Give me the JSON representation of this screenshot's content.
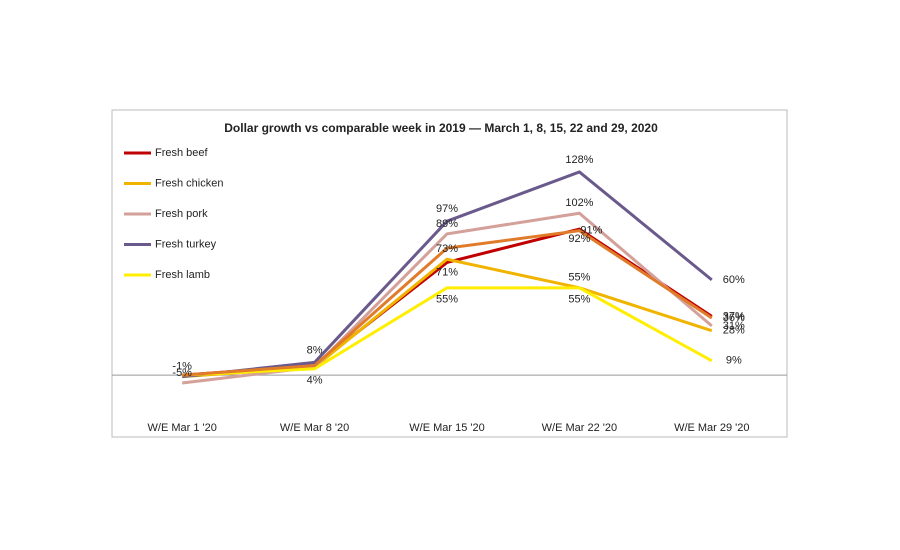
{
  "chart_data": {
    "type": "line",
    "title": "Dollar growth vs comparable week in 2019 — March 1, 8, 15, 22 and 29, 2020",
    "categories": [
      "W/E Mar 1 '20",
      "W/E Mar 8 '20",
      "W/E Mar 15 '20",
      "W/E Mar 22 '20",
      "W/E Mar 29 '20"
    ],
    "ylim": [
      -22,
      145
    ],
    "yticks": [
      0
    ],
    "grid": false,
    "series": [
      {
        "name": "Fresh beef",
        "color": "#c00000",
        "values": [
          0,
          6,
          71,
          92,
          37
        ],
        "value_labels": [
          null,
          null,
          "71%",
          "92%",
          "37%"
        ]
      },
      {
        "name": "Fresh chicken",
        "color": "#f0b400",
        "values": [
          -1,
          5,
          73,
          55,
          28
        ],
        "value_labels": [
          "-1%",
          null,
          "73%",
          "55%",
          "28%"
        ]
      },
      {
        "name": "Fresh pork",
        "color": "#d4a09a",
        "values": [
          -5,
          5,
          89,
          102,
          31
        ],
        "value_labels": [
          "-5%",
          null,
          "89%",
          "102%",
          "31%"
        ]
      },
      {
        "name": "Fresh turkey",
        "color": "#6a5a8c",
        "values": [
          -1,
          8,
          97,
          128,
          60
        ],
        "value_labels": [
          null,
          "8%",
          "97%",
          "128%",
          "60%"
        ]
      },
      {
        "name": "Fresh lamb",
        "color": "#ffee00",
        "values": [
          0,
          4,
          55,
          55,
          9
        ],
        "value_labels": [
          null,
          "4%",
          "55%",
          "55%",
          "9%"
        ]
      },
      {
        "color": "#e07b2a",
        "values": [
          0,
          6,
          80,
          91,
          36
        ],
        "value_labels": [
          null,
          null,
          null,
          "91%",
          "36%"
        ]
      }
    ]
  }
}
